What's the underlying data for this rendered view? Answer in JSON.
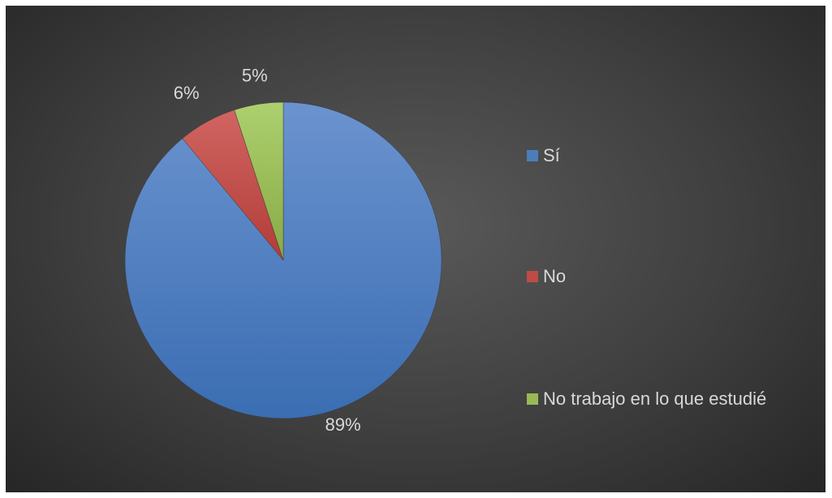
{
  "chart_data": {
    "type": "pie",
    "categories": [
      "Sí",
      "No",
      "No trabajo en lo que estudié"
    ],
    "values": [
      89,
      6,
      5
    ],
    "data_labels": [
      "89%",
      "6%",
      "5%"
    ],
    "colors": [
      "#4a7ebb",
      "#be4b48",
      "#98b954"
    ],
    "legend_position": "right",
    "title": ""
  }
}
